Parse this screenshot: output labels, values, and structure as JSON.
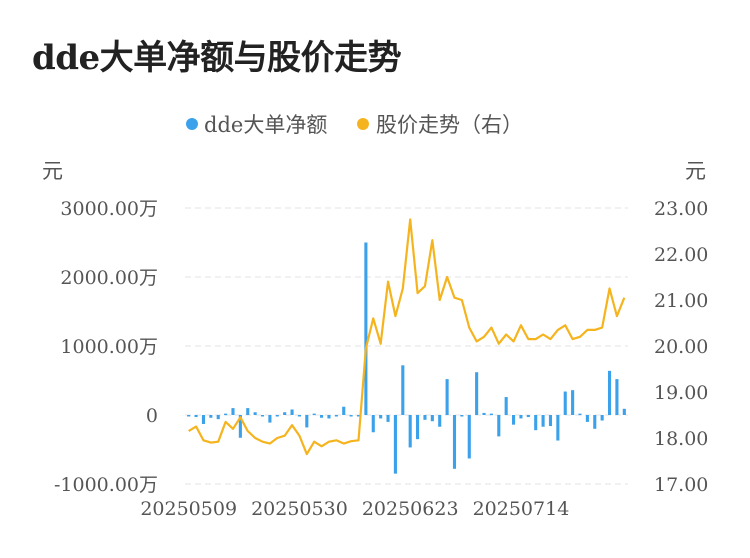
{
  "title": "dde大单净额与股价走势",
  "colors": {
    "bar": "#3ba1ea",
    "line": "#f5b41e",
    "grid": "#e3e3e3",
    "text": "#555555"
  },
  "chart_data": {
    "type": "bar+line",
    "legend": [
      {
        "name": "dde大单净额",
        "color": "#3ba1ea"
      },
      {
        "name": "股价走势（右）",
        "color": "#f5b41e"
      }
    ],
    "left_unit": "元",
    "right_unit": "元",
    "left_ticks": [
      "3000.00万",
      "2000.00万",
      "1000.00万",
      "0",
      "-1000.00万"
    ],
    "left_tick_values": [
      3000,
      2000,
      1000,
      0,
      -1000
    ],
    "right_ticks": [
      "23.00",
      "22.00",
      "21.00",
      "20.00",
      "19.00",
      "18.00",
      "17.00"
    ],
    "right_tick_values": [
      23,
      22,
      21,
      20,
      19,
      18,
      17
    ],
    "left_range": [
      -1000,
      3000
    ],
    "right_range": [
      17,
      23
    ],
    "x_tick_labels": [
      "20250509",
      "20250530",
      "20250623",
      "20250714"
    ],
    "x_tick_index": [
      0,
      15,
      30,
      45
    ],
    "grid": true,
    "legend_position": "top-center",
    "series": [
      {
        "name": "dde大单净额",
        "axis": "left",
        "unit": "万",
        "values": [
          -20,
          -30,
          -130,
          -40,
          -60,
          20,
          100,
          -330,
          100,
          40,
          -10,
          -110,
          -20,
          40,
          80,
          -20,
          -180,
          20,
          -40,
          -50,
          -20,
          120,
          -20,
          -20,
          2500,
          -250,
          -50,
          -100,
          -850,
          720,
          -470,
          -350,
          -70,
          -90,
          -170,
          520,
          -780,
          -20,
          -630,
          620,
          30,
          20,
          -310,
          260,
          -140,
          -50,
          -30,
          -220,
          -170,
          -160,
          -370,
          340,
          360,
          20,
          -100,
          -200,
          -80,
          640,
          520,
          90
        ],
        "note_unit": "元"
      },
      {
        "name": "股价走势（右）",
        "axis": "right",
        "values": [
          18.15,
          18.25,
          17.95,
          17.9,
          17.92,
          18.35,
          18.2,
          18.45,
          18.15,
          18.0,
          17.92,
          17.88,
          18.0,
          18.05,
          18.28,
          18.05,
          17.65,
          17.92,
          17.82,
          17.92,
          17.95,
          17.88,
          17.93,
          17.95,
          19.95,
          20.6,
          20.05,
          21.4,
          20.65,
          21.25,
          22.75,
          21.15,
          21.3,
          22.3,
          21.0,
          21.5,
          21.05,
          21.0,
          20.4,
          20.1,
          20.2,
          20.4,
          20.05,
          20.25,
          20.1,
          20.45,
          20.15,
          20.15,
          20.25,
          20.15,
          20.35,
          20.45,
          20.15,
          20.2,
          20.35,
          20.35,
          20.4,
          21.25,
          20.65,
          21.05
        ]
      }
    ]
  }
}
